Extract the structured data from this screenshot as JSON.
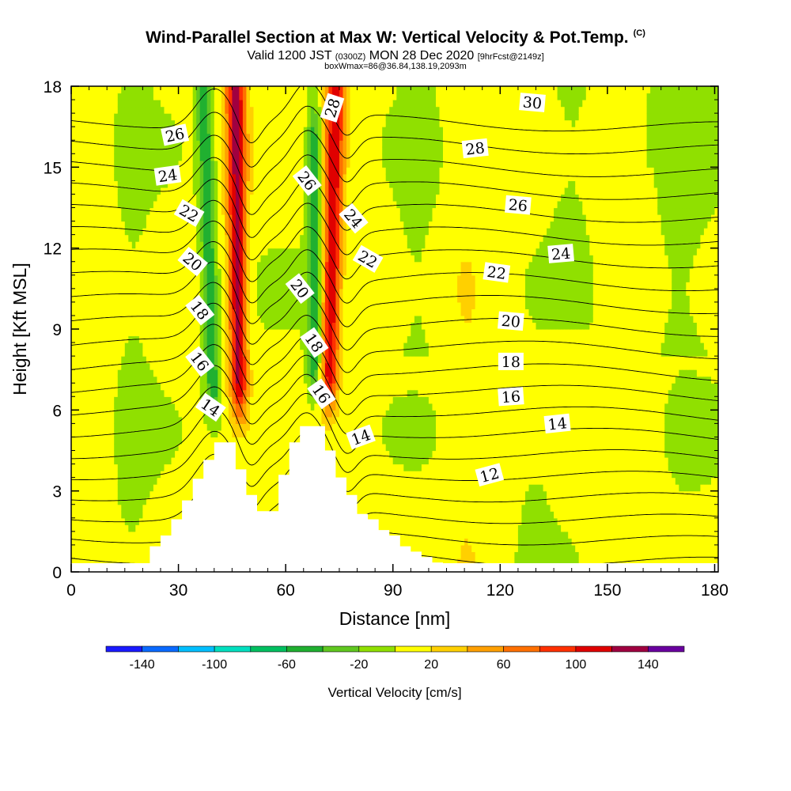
{
  "header": {
    "title": "Wind-Parallel Section at Max W: Vertical Velocity & Pot.Temp.",
    "copyright": "(C)",
    "valid_prefix": "Valid 1200 JST",
    "valid_zulu": "(0300Z)",
    "valid_date": "MON 28 Dec 2020",
    "valid_fcst": "[9hrFcst@2149z]",
    "box_info": "boxWmax=86@36.84,138.19,2093m"
  },
  "chart_data": {
    "type": "heatmap",
    "xlabel": "Distance [nm]",
    "ylabel": "Height [Kft MSL]",
    "xlim": [
      0,
      181
    ],
    "ylim": [
      0,
      18
    ],
    "x_ticks": [
      0,
      30,
      60,
      90,
      120,
      150,
      180
    ],
    "y_ticks": [
      0,
      3,
      6,
      9,
      12,
      15,
      18
    ],
    "colorbar": {
      "label": "Vertical Velocity [cm/s]",
      "levels": [
        -160,
        -140,
        -120,
        -100,
        -80,
        -60,
        -40,
        -20,
        0,
        20,
        40,
        60,
        80,
        100,
        120,
        140,
        160
      ],
      "tick_values": [
        -140,
        -100,
        -60,
        -20,
        20,
        60,
        100,
        140
      ],
      "colors": [
        "#1a1aff",
        "#0a6aff",
        "#00bfff",
        "#00e0c0",
        "#00c060",
        "#20b030",
        "#60c820",
        "#90e000",
        "#ffff00",
        "#ffd000",
        "#ffa000",
        "#ff7000",
        "#ff3000",
        "#e00000",
        "#a00040",
        "#6a00a0"
      ]
    },
    "terrain": [
      [
        0,
        0
      ],
      [
        16,
        0
      ],
      [
        16,
        0.25
      ],
      [
        22,
        0.25
      ],
      [
        22,
        0.95
      ],
      [
        25,
        0.95
      ],
      [
        25,
        1.35
      ],
      [
        28,
        1.35
      ],
      [
        28,
        1.95
      ],
      [
        31,
        1.95
      ],
      [
        31,
        2.65
      ],
      [
        34,
        2.65
      ],
      [
        34,
        3.45
      ],
      [
        37,
        3.45
      ],
      [
        37,
        4.15
      ],
      [
        40,
        4.15
      ],
      [
        40,
        4.8
      ],
      [
        46,
        4.8
      ],
      [
        46,
        3.8
      ],
      [
        49,
        3.8
      ],
      [
        49,
        2.85
      ],
      [
        52,
        2.85
      ],
      [
        52,
        2.25
      ],
      [
        58,
        2.25
      ],
      [
        58,
        3.6
      ],
      [
        61,
        3.6
      ],
      [
        61,
        4.8
      ],
      [
        64,
        4.8
      ],
      [
        64,
        5.4
      ],
      [
        71,
        5.4
      ],
      [
        71,
        4.5
      ],
      [
        74,
        4.5
      ],
      [
        74,
        3.5
      ],
      [
        77,
        3.5
      ],
      [
        77,
        2.85
      ],
      [
        80,
        2.85
      ],
      [
        80,
        2.15
      ],
      [
        83,
        2.15
      ],
      [
        83,
        1.95
      ],
      [
        86,
        1.95
      ],
      [
        86,
        1.55
      ],
      [
        89,
        1.55
      ],
      [
        89,
        1.35
      ],
      [
        92,
        1.35
      ],
      [
        92,
        0.95
      ],
      [
        95,
        0.95
      ],
      [
        95,
        0.75
      ],
      [
        98,
        0.75
      ],
      [
        98,
        0.55
      ],
      [
        101,
        0.55
      ],
      [
        101,
        0.35
      ],
      [
        104,
        0.35
      ],
      [
        104,
        0.25
      ],
      [
        110,
        0.25
      ],
      [
        110,
        0
      ],
      [
        181,
        0
      ]
    ],
    "updrafts": [
      {
        "x_bottom": 47,
        "x_top": 46,
        "y_bottom": 5.2,
        "y_top": 18,
        "peak_w": 120
      },
      {
        "x_bottom": 72,
        "x_top": 74,
        "y_bottom": 5.5,
        "y_top": 18,
        "peak_w": 110
      }
    ],
    "downdrafts": [
      {
        "x_bottom": 40,
        "x_top": 37,
        "y_bottom": 5.2,
        "y_top": 18,
        "peak_w": -60
      },
      {
        "x_bottom": 68,
        "x_top": 68,
        "y_bottom": 6,
        "y_top": 16,
        "peak_w": -60
      }
    ],
    "theta_contour_labels": [
      {
        "text": "26",
        "x": 29,
        "y": 16.2,
        "angle": -12
      },
      {
        "text": "24",
        "x": 27,
        "y": 14.7,
        "angle": -8
      },
      {
        "text": "22",
        "x": 33,
        "y": 13.3,
        "angle": 30
      },
      {
        "text": "20",
        "x": 34,
        "y": 11.5,
        "angle": 40
      },
      {
        "text": "18",
        "x": 36,
        "y": 9.7,
        "angle": 52
      },
      {
        "text": "16",
        "x": 36,
        "y": 7.8,
        "angle": 52
      },
      {
        "text": "14",
        "x": 39,
        "y": 6.1,
        "angle": 35
      },
      {
        "text": "28",
        "x": 73,
        "y": 17.2,
        "angle": -72
      },
      {
        "text": "26",
        "x": 66,
        "y": 14.5,
        "angle": 52
      },
      {
        "text": "24",
        "x": 79,
        "y": 13.1,
        "angle": 50
      },
      {
        "text": "22",
        "x": 83,
        "y": 11.6,
        "angle": 30
      },
      {
        "text": "20",
        "x": 64,
        "y": 10.5,
        "angle": 52
      },
      {
        "text": "18",
        "x": 68,
        "y": 8.5,
        "angle": 55
      },
      {
        "text": "16",
        "x": 70,
        "y": 6.6,
        "angle": 55
      },
      {
        "text": "14",
        "x": 81,
        "y": 5.0,
        "angle": -20
      },
      {
        "text": "30",
        "x": 129,
        "y": 17.4,
        "angle": 5
      },
      {
        "text": "28",
        "x": 113,
        "y": 15.7,
        "angle": -6
      },
      {
        "text": "26",
        "x": 125,
        "y": 13.6,
        "angle": 5
      },
      {
        "text": "24",
        "x": 137,
        "y": 11.8,
        "angle": -5
      },
      {
        "text": "22",
        "x": 119,
        "y": 11.1,
        "angle": 8
      },
      {
        "text": "20",
        "x": 123,
        "y": 9.3,
        "angle": 5
      },
      {
        "text": "18",
        "x": 123,
        "y": 7.8,
        "angle": 0
      },
      {
        "text": "16",
        "x": 123,
        "y": 6.5,
        "angle": -4
      },
      {
        "text": "14",
        "x": 136,
        "y": 5.5,
        "angle": -6
      },
      {
        "text": "12",
        "x": 117,
        "y": 3.6,
        "angle": -15
      }
    ]
  }
}
